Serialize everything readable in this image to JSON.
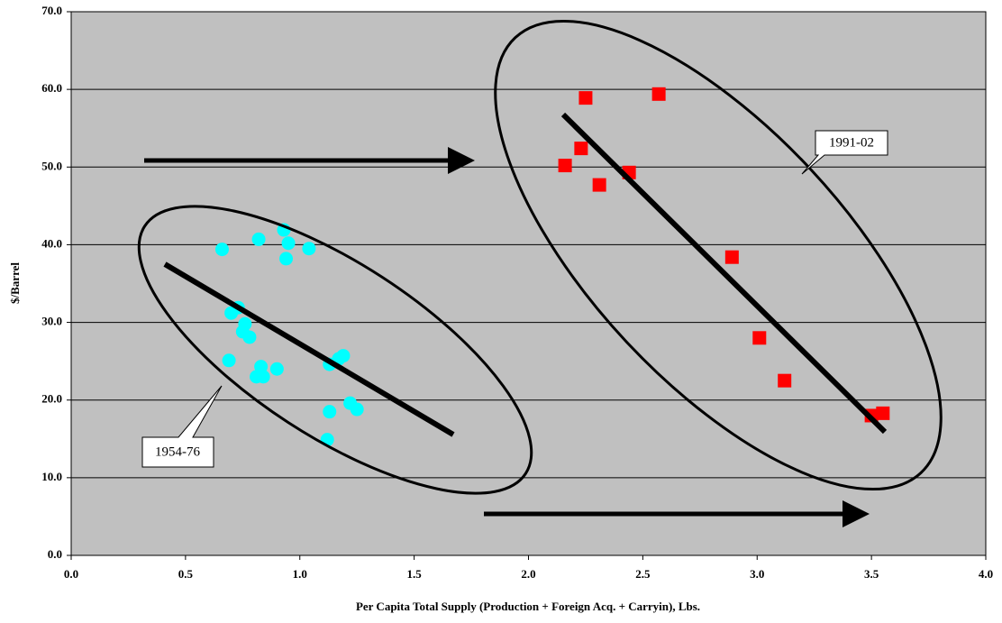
{
  "chart_data": {
    "type": "scatter",
    "x_label": "Per Capita Total Supply (Production + Foreign Acq. + Carryin), Lbs.",
    "y_label": "$/Barrel",
    "xlim": [
      0,
      4
    ],
    "ylim": [
      0,
      70
    ],
    "xticks": [
      {
        "value": 0,
        "label": "0.0"
      },
      {
        "value": 0.5,
        "label": "0.5"
      },
      {
        "value": 1,
        "label": "1.0"
      },
      {
        "value": 1.5,
        "label": "1.5"
      },
      {
        "value": 2,
        "label": "2.0"
      },
      {
        "value": 2.5,
        "label": "2.5"
      },
      {
        "value": 3,
        "label": "3.0"
      },
      {
        "value": 3.5,
        "label": "3.5"
      },
      {
        "value": 4,
        "label": "4.0"
      }
    ],
    "yticks": [
      {
        "value": 0,
        "label": "0.0"
      },
      {
        "value": 10,
        "label": "10.0"
      },
      {
        "value": 20,
        "label": "20.0"
      },
      {
        "value": 30,
        "label": "30.0"
      },
      {
        "value": 40,
        "label": "40.0"
      },
      {
        "value": 50,
        "label": "50.0"
      },
      {
        "value": 60,
        "label": "60.0"
      },
      {
        "value": 70,
        "label": "70.0"
      }
    ],
    "grid": true,
    "annotations": [
      "1991-02",
      "1954-76"
    ],
    "series": [
      {
        "color": "#00ffff",
        "marker": "circle",
        "x": [
          0.93,
          0.82,
          0.66,
          0.95,
          1.04,
          0.94,
          0.73,
          0.7,
          0.76,
          0.75,
          0.78,
          0.69,
          0.83,
          0.9,
          0.81,
          0.84,
          1.13,
          1.17,
          1.19,
          1.22,
          1.13,
          1.25,
          1.12
        ],
        "values": [
          41.9,
          40.7,
          39.4,
          40.2,
          39.5,
          38.2,
          31.9,
          31.2,
          29.8,
          28.8,
          28.1,
          25.1,
          24.3,
          24.0,
          23.0,
          23.0,
          24.6,
          25.3,
          25.7,
          19.6,
          18.5,
          18.8,
          14.9
        ]
      },
      {
        "color": "#ff0000",
        "marker": "square",
        "x": [
          2.16,
          2.23,
          2.25,
          2.31,
          2.44,
          2.57,
          2.89,
          3.01,
          3.12,
          3.5,
          3.55
        ],
        "values": [
          50.2,
          52.4,
          58.9,
          47.7,
          49.3,
          59.4,
          38.4,
          28.0,
          22.5,
          18.0,
          18.3
        ]
      }
    ]
  }
}
